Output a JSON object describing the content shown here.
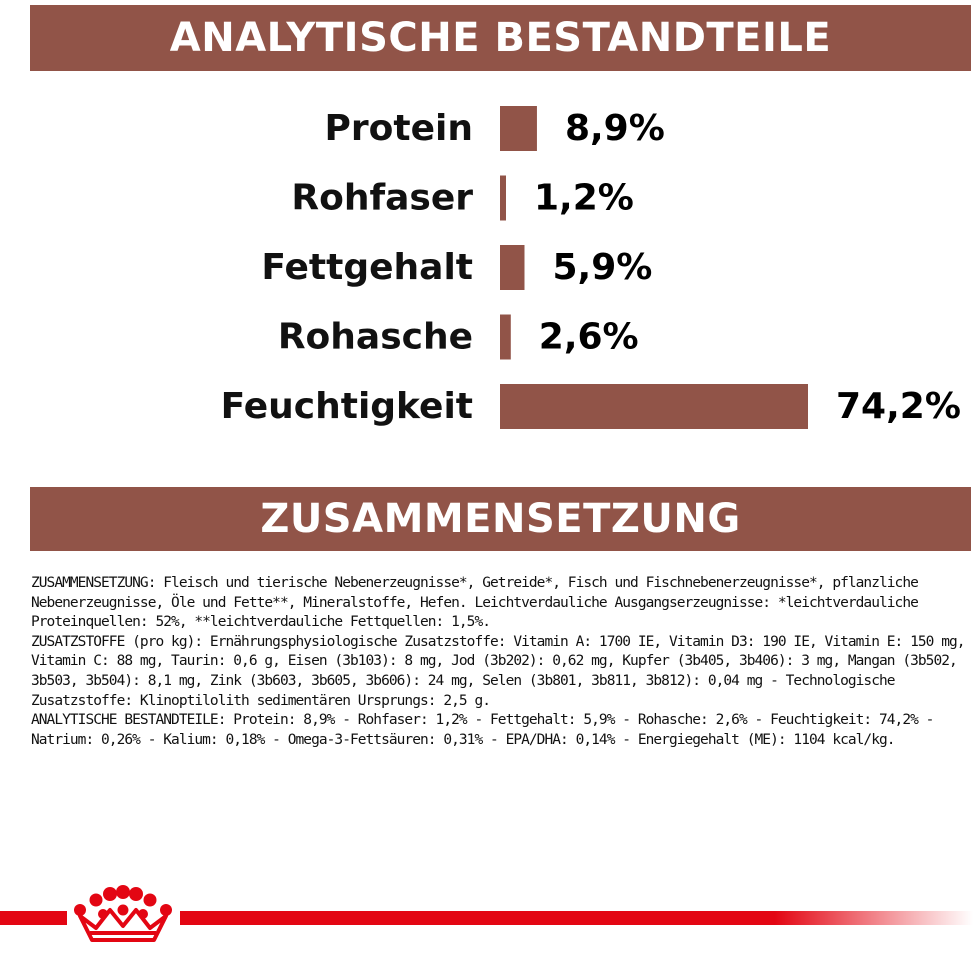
{
  "colors": {
    "accent": "#915448",
    "brand_red": "#e30613",
    "text": "#111111"
  },
  "banners": {
    "analysis_title": "ANALYTISCHE BESTANDTEILE",
    "composition_title": "ZUSAMMENSETZUNG"
  },
  "chart_data": {
    "type": "bar",
    "orientation": "horizontal",
    "categories": [
      "Protein",
      "Rohfaser",
      "Fettgehalt",
      "Rohasche",
      "Feuchtigkeit"
    ],
    "values": [
      8.9,
      1.2,
      5.9,
      2.6,
      74.2
    ],
    "value_labels": [
      "8,9%",
      "1,2%",
      "5,9%",
      "2,6%",
      "74,2%"
    ],
    "xlim": [
      0,
      74.2
    ],
    "grid": false,
    "legend": "none"
  },
  "composition": {
    "paragraphs": [
      "ZUSAMMENSETZUNG: Fleisch und tierische Nebenerzeugnisse*, Getreide*, Fisch und Fischnebenerzeugnisse*, pflanzliche Nebenerzeugnisse, Öle und Fette**, Mineralstoffe, Hefen. Leichtverdauliche Ausgangserzeugnisse: *leichtverdauliche Proteinquellen: 52%, **leichtverdauliche Fettquellen: 1,5%.",
      "ZUSATZSTOFFE (pro kg): Ernährungsphysiologische Zusatzstoffe: Vitamin A: 1700 IE, Vitamin D3: 190 IE, Vitamin E: 150 mg, Vitamin C: 88 mg, Taurin: 0,6 g, Eisen (3b103): 8 mg, Jod (3b202): 0,62 mg, Kupfer (3b405, 3b406): 3 mg, Mangan (3b502, 3b503, 3b504): 8,1 mg, Zink (3b603, 3b605, 3b606): 24 mg, Selen (3b801, 3b811, 3b812): 0,04 mg - Technologische Zusatzstoffe: Klinoptilolith sedimentären Ursprungs: 2,5 g.",
      "ANALYTISCHE BESTANDTEILE: Protein: 8,9% - Rohfaser: 1,2% - Fettgehalt: 5,9% - Rohasche: 2,6% - Feuchtigkeit: 74,2% - Natrium: 0,26% - Kalium: 0,18% - Omega-3-Fettsäuren: 0,31% - EPA/DHA: 0,14% - Energiegehalt (ME): 1104 kcal/kg."
    ]
  },
  "footer": {
    "logo_icon": "crown-icon"
  }
}
